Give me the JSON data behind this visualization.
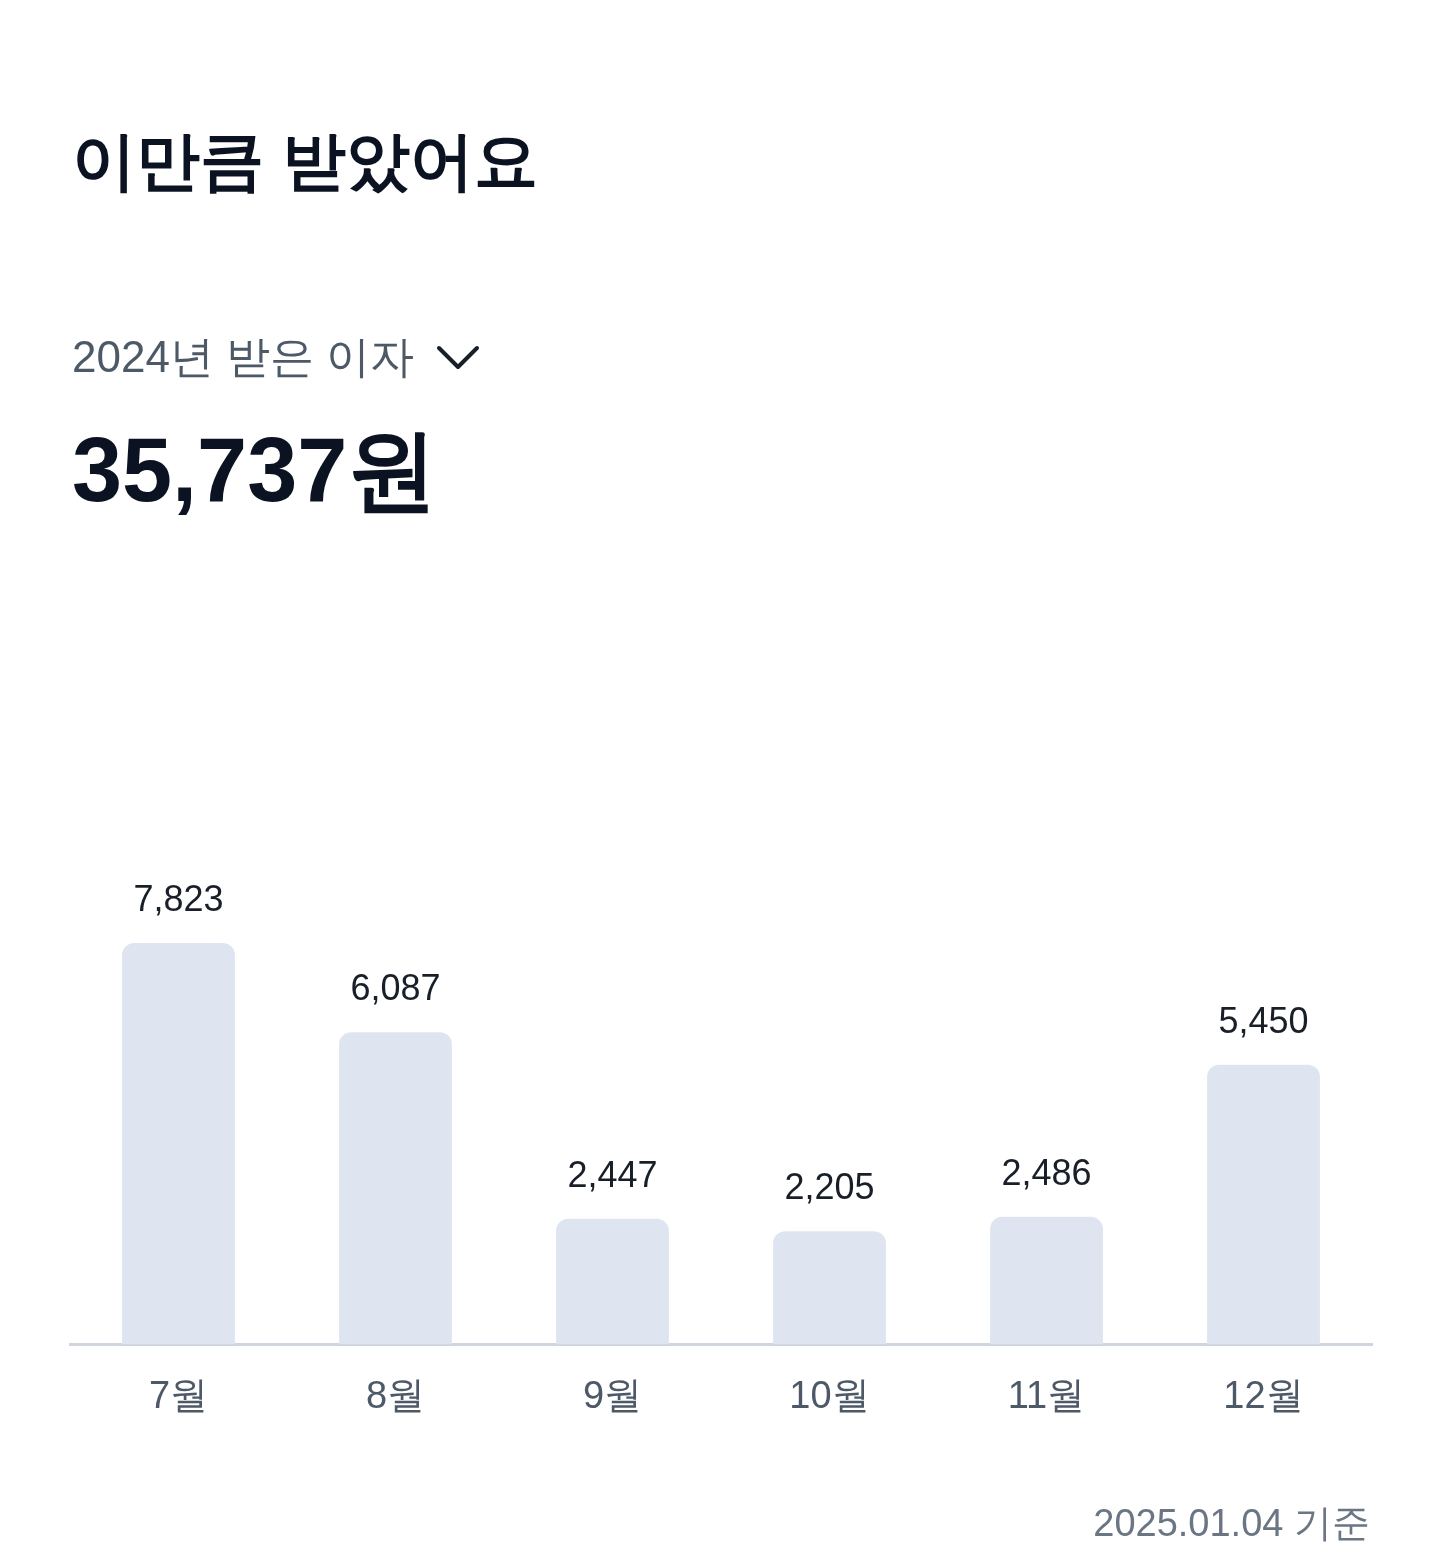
{
  "chart_data": {
    "type": "bar",
    "title": "이만큼 받았어요",
    "subtitle": "2024년 받은 이자",
    "categories": [
      "7월",
      "8월",
      "9월",
      "10월",
      "11월",
      "12월"
    ],
    "values": [
      7823,
      6087,
      2447,
      2205,
      2486,
      5450
    ],
    "value_labels": [
      "7,823",
      "6,087",
      "2,447",
      "2,205",
      "2,486",
      "5,450"
    ],
    "color": "#dfe5f0",
    "grid": false,
    "annotations": [
      "35,737원",
      "2025.01.04 기준"
    ]
  }
}
